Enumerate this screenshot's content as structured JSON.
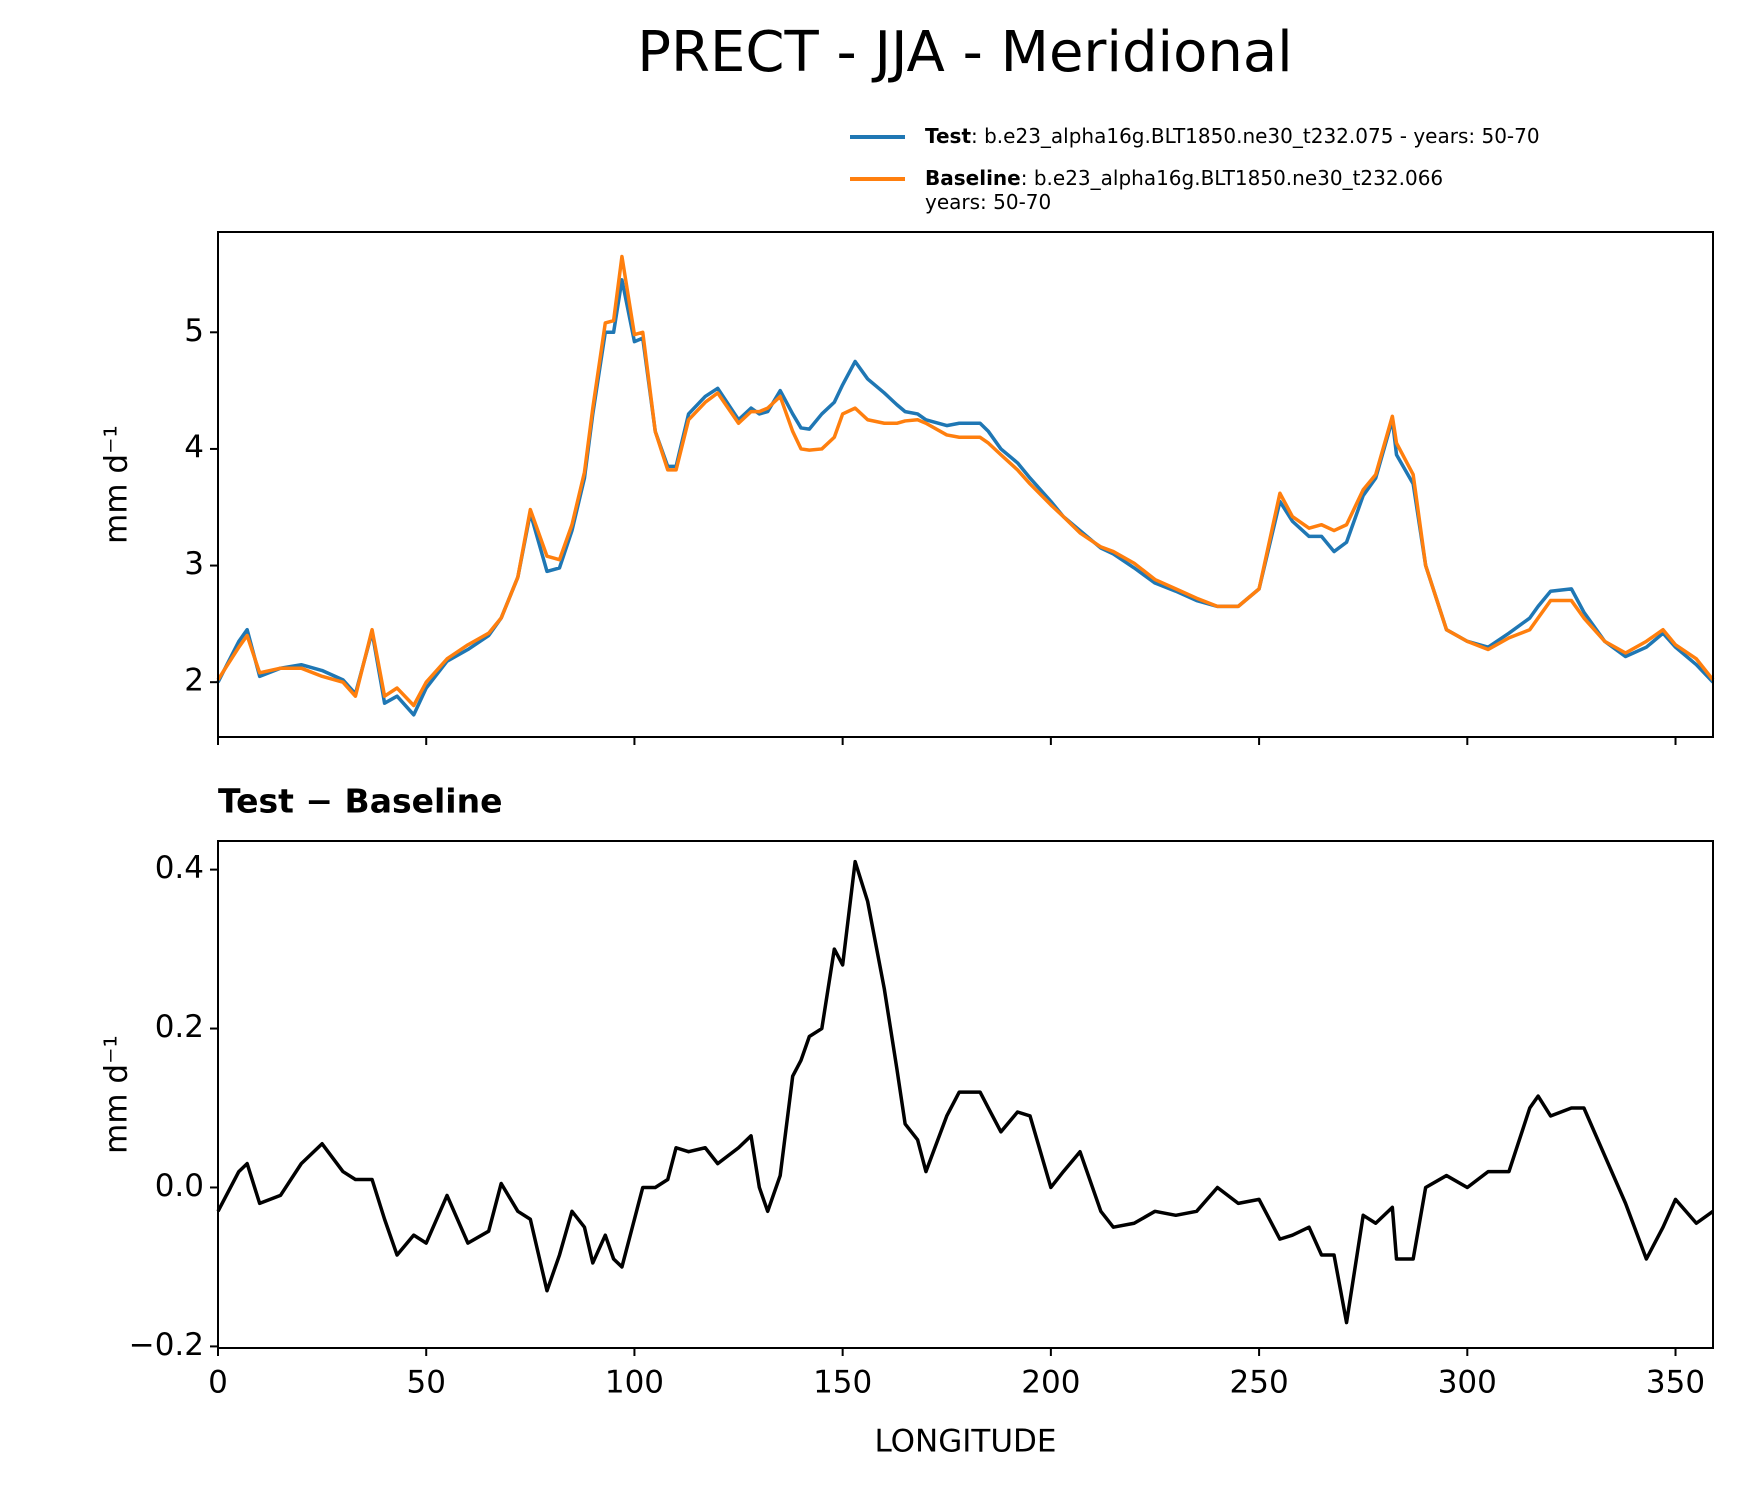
{
  "chart_data": [
    {
      "type": "line",
      "title": "PRECT - JJA - Meridional",
      "ylabel": "mm d⁻¹",
      "x": [
        0,
        5,
        7,
        10,
        15,
        20,
        25,
        30,
        33,
        37,
        40,
        43,
        47,
        50,
        55,
        60,
        65,
        68,
        72,
        75,
        79,
        82,
        85,
        88,
        90,
        93,
        95,
        97,
        100,
        102,
        105,
        108,
        110,
        113,
        117,
        120,
        125,
        128,
        130,
        132,
        135,
        138,
        140,
        142,
        145,
        148,
        150,
        153,
        156,
        160,
        163,
        165,
        168,
        170,
        175,
        178,
        183,
        185,
        188,
        192,
        195,
        200,
        203,
        207,
        212,
        215,
        220,
        225,
        230,
        235,
        240,
        245,
        250,
        255,
        258,
        262,
        265,
        268,
        271,
        275,
        278,
        282,
        283,
        287,
        290,
        295,
        300,
        305,
        310,
        315,
        317,
        320,
        325,
        328,
        333,
        338,
        343,
        347,
        350,
        355,
        359
      ],
      "series": [
        {
          "name": "Test",
          "description": [
            ": b.e23_alpha16g.BLT1850.ne30_t232.075 - years: 50-70"
          ],
          "color": "#1f77b4",
          "values": [
            2.0,
            2.35,
            2.45,
            2.05,
            2.12,
            2.15,
            2.1,
            2.02,
            1.9,
            2.43,
            1.82,
            1.88,
            1.72,
            1.95,
            2.18,
            2.28,
            2.4,
            2.55,
            2.9,
            3.45,
            2.95,
            2.98,
            3.3,
            3.75,
            4.3,
            5.0,
            5.0,
            5.45,
            4.92,
            4.95,
            4.15,
            3.85,
            3.85,
            4.3,
            4.45,
            4.52,
            4.25,
            4.35,
            4.3,
            4.32,
            4.5,
            4.3,
            4.18,
            4.17,
            4.3,
            4.4,
            4.55,
            4.75,
            4.6,
            4.48,
            4.38,
            4.32,
            4.3,
            4.25,
            4.2,
            4.22,
            4.22,
            4.15,
            4.0,
            3.88,
            3.75,
            3.55,
            3.42,
            3.3,
            3.15,
            3.1,
            2.98,
            2.85,
            2.78,
            2.7,
            2.65,
            2.65,
            2.8,
            3.55,
            3.38,
            3.25,
            3.25,
            3.12,
            3.2,
            3.6,
            3.75,
            4.25,
            3.95,
            3.7,
            3.0,
            2.45,
            2.35,
            2.3,
            2.42,
            2.55,
            2.65,
            2.78,
            2.8,
            2.6,
            2.35,
            2.22,
            2.3,
            2.42,
            2.3,
            2.15,
            2.0
          ]
        },
        {
          "name": "Baseline",
          "description": [
            ": b.e23_alpha16g.BLT1850.ne30_t232.066",
            "years: 50-70"
          ],
          "color": "#ff7f0e",
          "values": [
            2.02,
            2.3,
            2.4,
            2.08,
            2.12,
            2.12,
            2.05,
            2.0,
            1.88,
            2.45,
            1.88,
            1.95,
            1.8,
            2.0,
            2.2,
            2.32,
            2.42,
            2.55,
            2.9,
            3.48,
            3.08,
            3.05,
            3.35,
            3.8,
            4.35,
            5.08,
            5.1,
            5.65,
            4.98,
            5.0,
            4.15,
            3.82,
            3.82,
            4.25,
            4.4,
            4.48,
            4.22,
            4.32,
            4.32,
            4.35,
            4.45,
            4.15,
            4.0,
            3.99,
            4.0,
            4.1,
            4.3,
            4.35,
            4.25,
            4.22,
            4.22,
            4.24,
            4.25,
            4.22,
            4.12,
            4.1,
            4.1,
            4.05,
            3.95,
            3.82,
            3.7,
            3.52,
            3.42,
            3.28,
            3.16,
            3.12,
            3.02,
            2.88,
            2.8,
            2.72,
            2.65,
            2.65,
            2.8,
            3.62,
            3.42,
            3.32,
            3.35,
            3.3,
            3.35,
            3.65,
            3.78,
            4.28,
            4.05,
            3.78,
            3.0,
            2.45,
            2.35,
            2.28,
            2.38,
            2.45,
            2.55,
            2.7,
            2.7,
            2.55,
            2.35,
            2.25,
            2.35,
            2.45,
            2.32,
            2.2,
            2.02
          ]
        }
      ],
      "xlim": [
        0,
        359
      ],
      "xticks": [
        0,
        50,
        100,
        150,
        200,
        250,
        300,
        350
      ],
      "xticklabels": false,
      "ylim": [
        1.53,
        5.86
      ],
      "yticks": [
        2,
        3,
        4,
        5
      ]
    },
    {
      "type": "line",
      "title": "Test − Baseline",
      "xlabel": "LONGITUDE",
      "ylabel": "mm d⁻¹",
      "x": [
        0,
        5,
        7,
        10,
        15,
        20,
        25,
        30,
        33,
        37,
        40,
        43,
        47,
        50,
        55,
        60,
        65,
        68,
        72,
        75,
        79,
        82,
        85,
        88,
        90,
        93,
        95,
        97,
        100,
        102,
        105,
        108,
        110,
        113,
        117,
        120,
        125,
        128,
        130,
        132,
        135,
        138,
        140,
        142,
        145,
        148,
        150,
        153,
        156,
        160,
        163,
        165,
        168,
        170,
        175,
        178,
        183,
        185,
        188,
        192,
        195,
        200,
        203,
        207,
        212,
        215,
        220,
        225,
        230,
        235,
        240,
        245,
        250,
        255,
        258,
        262,
        265,
        268,
        271,
        275,
        278,
        282,
        283,
        287,
        290,
        295,
        300,
        305,
        310,
        315,
        317,
        320,
        325,
        328,
        333,
        338,
        343,
        347,
        350,
        355,
        359
      ],
      "series": [
        {
          "color": "#000000",
          "values": [
            -0.03,
            0.02,
            0.03,
            -0.02,
            -0.01,
            0.03,
            0.055,
            0.02,
            0.01,
            0.01,
            -0.04,
            -0.085,
            -0.06,
            -0.07,
            -0.01,
            -0.07,
            -0.055,
            0.005,
            -0.03,
            -0.04,
            -0.13,
            -0.085,
            -0.03,
            -0.05,
            -0.095,
            -0.06,
            -0.09,
            -0.1,
            -0.04,
            0.0,
            0.0,
            0.01,
            0.05,
            0.045,
            0.05,
            0.03,
            0.05,
            0.065,
            0.0,
            -0.03,
            0.015,
            0.14,
            0.16,
            0.19,
            0.2,
            0.3,
            0.28,
            0.41,
            0.36,
            0.25,
            0.15,
            0.08,
            0.06,
            0.02,
            0.09,
            0.12,
            0.12,
            0.1,
            0.07,
            0.095,
            0.09,
            0.0,
            0.02,
            0.045,
            -0.03,
            -0.05,
            -0.045,
            -0.03,
            -0.035,
            -0.03,
            0.0,
            -0.02,
            -0.015,
            -0.065,
            -0.06,
            -0.05,
            -0.085,
            -0.085,
            -0.17,
            -0.035,
            -0.045,
            -0.025,
            -0.09,
            -0.09,
            0.0,
            0.015,
            0.0,
            0.02,
            0.02,
            0.1,
            0.115,
            0.09,
            0.1,
            0.1,
            0.04,
            -0.02,
            -0.09,
            -0.05,
            -0.015,
            -0.045,
            -0.03
          ]
        }
      ],
      "xlim": [
        0,
        359
      ],
      "xticks": [
        0,
        50,
        100,
        150,
        200,
        250,
        300,
        350
      ],
      "ylim": [
        -0.202,
        0.436
      ],
      "yticks": [
        {
          "value": -0.2,
          "label": "−0.2"
        },
        {
          "value": 0,
          "label": "0.0"
        },
        0.2,
        0.4
      ]
    }
  ]
}
